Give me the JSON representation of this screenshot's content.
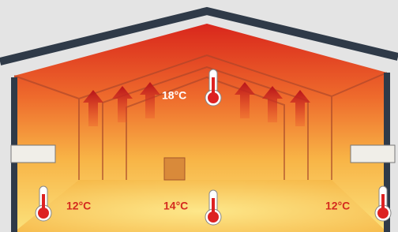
{
  "labels": {
    "ceiling": "18°C",
    "floor_left": "12°C",
    "floor_center": "14°C",
    "floor_right": "12°C"
  }
}
